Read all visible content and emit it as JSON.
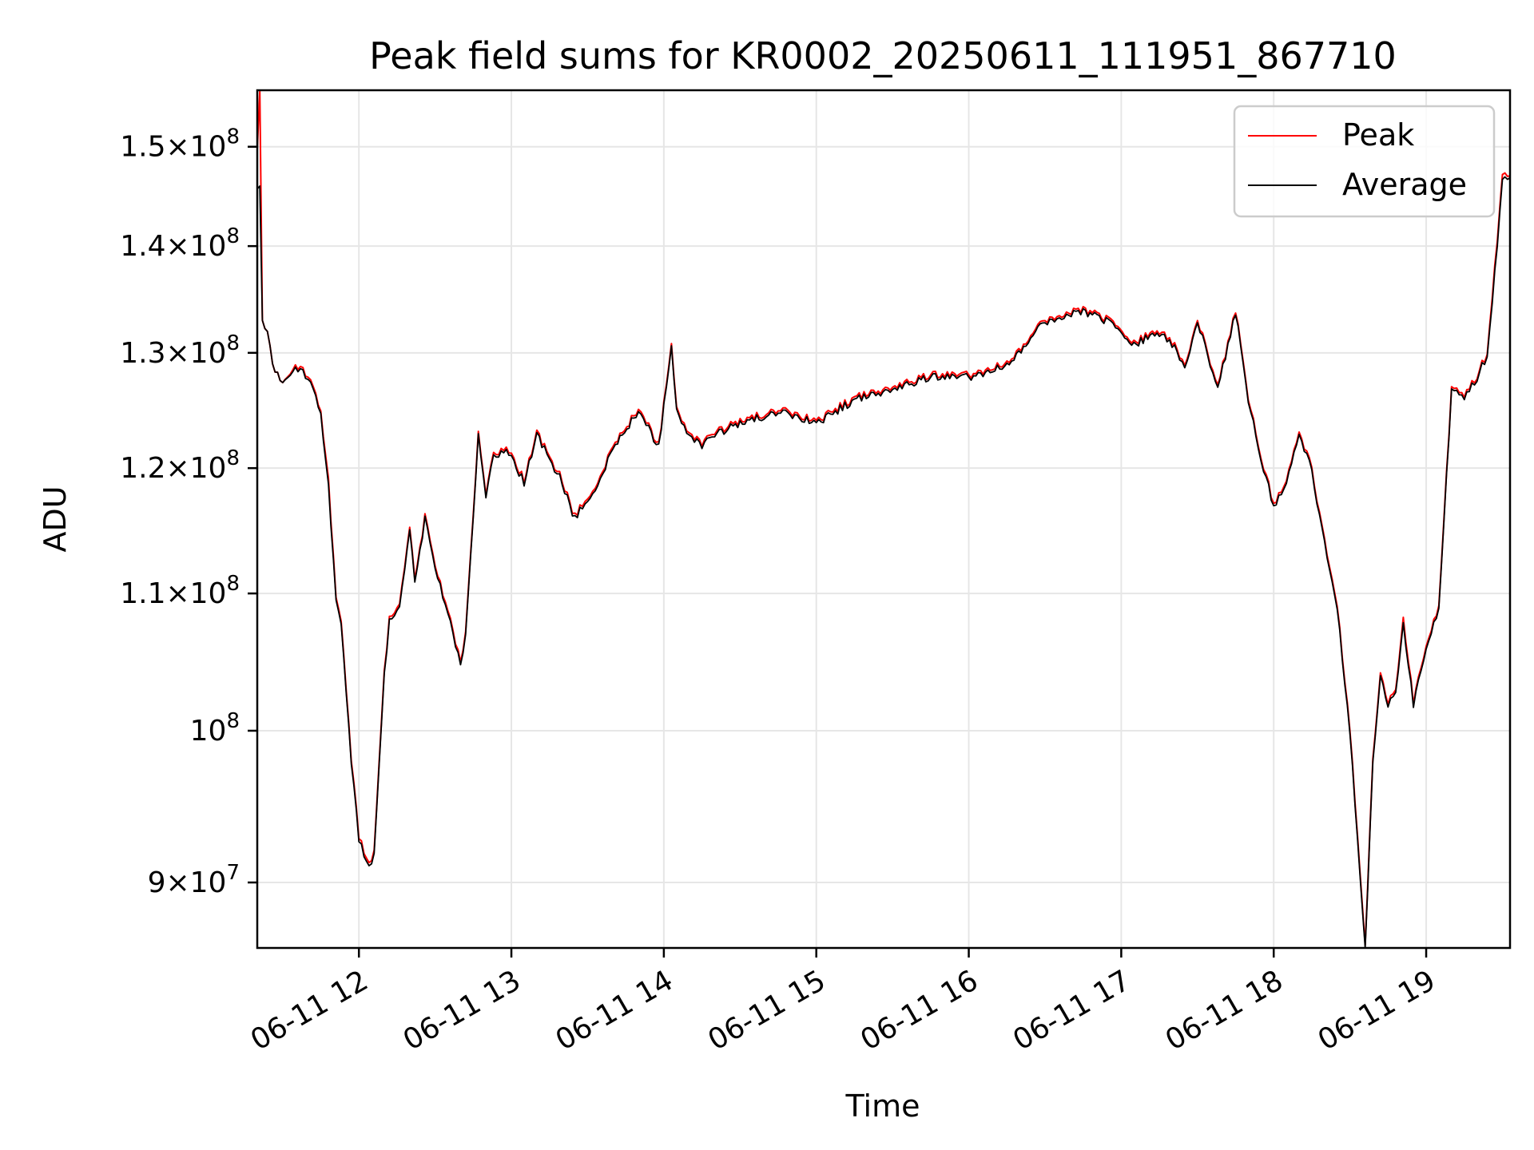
{
  "chart_data": {
    "type": "line",
    "title": "Peak field sums for KR0002_20250611_111951_867710",
    "xlabel": "Time",
    "ylabel": "ADU",
    "yscale": "log",
    "ylim": [
      86000000,
      156000000
    ],
    "xlim": [
      "2025-06-11T11:20",
      "2025-06-11T19:33"
    ],
    "grid": true,
    "legend": "top-right",
    "x_ticks": [
      {
        "value": "2025-06-11T12:00",
        "label": "06-11 12"
      },
      {
        "value": "2025-06-11T13:00",
        "label": "06-11 13"
      },
      {
        "value": "2025-06-11T14:00",
        "label": "06-11 14"
      },
      {
        "value": "2025-06-11T15:00",
        "label": "06-11 15"
      },
      {
        "value": "2025-06-11T16:00",
        "label": "06-11 16"
      },
      {
        "value": "2025-06-11T17:00",
        "label": "06-11 17"
      },
      {
        "value": "2025-06-11T18:00",
        "label": "06-11 18"
      },
      {
        "value": "2025-06-11T19:00",
        "label": "06-11 19"
      }
    ],
    "y_ticks": [
      {
        "value": 90000000,
        "mant": "9",
        "exp": "7",
        "mant_sep": true
      },
      {
        "value": 100000000,
        "mant": "10",
        "exp": "8",
        "mant_sep": false
      },
      {
        "value": 110000000,
        "mant": "1.1",
        "exp": "8",
        "mant_sep": true
      },
      {
        "value": 120000000,
        "mant": "1.2",
        "exp": "8",
        "mant_sep": true
      },
      {
        "value": 130000000,
        "mant": "1.3",
        "exp": "8",
        "mant_sep": true
      },
      {
        "value": 140000000,
        "mant": "1.4",
        "exp": "8",
        "mant_sep": true
      },
      {
        "value": 150000000,
        "mant": "1.5",
        "exp": "8",
        "mant_sep": true
      }
    ],
    "series": [
      {
        "name": "Peak",
        "color": "#ff0000",
        "x": [
          "2025-06-11T11:20",
          "2025-06-11T11:21",
          "2025-06-11T11:22",
          "2025-06-11T11:24",
          "2025-06-11T11:26",
          "2025-06-11T11:30",
          "2025-06-11T11:35",
          "2025-06-11T11:40",
          "2025-06-11T11:45",
          "2025-06-11T11:48",
          "2025-06-11T11:51",
          "2025-06-11T11:53",
          "2025-06-11T11:57",
          "2025-06-11T12:00",
          "2025-06-11T12:04",
          "2025-06-11T12:06",
          "2025-06-11T12:10",
          "2025-06-11T12:12",
          "2025-06-11T12:16",
          "2025-06-11T12:20",
          "2025-06-11T12:22",
          "2025-06-11T12:26",
          "2025-06-11T12:30",
          "2025-06-11T12:36",
          "2025-06-11T12:40",
          "2025-06-11T12:42",
          "2025-06-11T12:47",
          "2025-06-11T12:50",
          "2025-06-11T12:53",
          "2025-06-11T12:58",
          "2025-06-11T13:05",
          "2025-06-11T13:10",
          "2025-06-11T13:15",
          "2025-06-11T13:20",
          "2025-06-11T13:25",
          "2025-06-11T13:28",
          "2025-06-11T13:33",
          "2025-06-11T13:40",
          "2025-06-11T13:50",
          "2025-06-11T13:58",
          "2025-06-11T14:03",
          "2025-06-11T14:05",
          "2025-06-11T14:10",
          "2025-06-11T14:15",
          "2025-06-11T14:20",
          "2025-06-11T14:30",
          "2025-06-11T14:45",
          "2025-06-11T15:00",
          "2025-06-11T15:15",
          "2025-06-11T15:30",
          "2025-06-11T15:45",
          "2025-06-11T16:00",
          "2025-06-11T16:15",
          "2025-06-11T16:30",
          "2025-06-11T16:45",
          "2025-06-11T16:55",
          "2025-06-11T17:05",
          "2025-06-11T17:15",
          "2025-06-11T17:20",
          "2025-06-11T17:25",
          "2025-06-11T17:30",
          "2025-06-11T17:38",
          "2025-06-11T17:45",
          "2025-06-11T17:50",
          "2025-06-11T17:55",
          "2025-06-11T18:00",
          "2025-06-11T18:05",
          "2025-06-11T18:10",
          "2025-06-11T18:15",
          "2025-06-11T18:20",
          "2025-06-11T18:25",
          "2025-06-11T18:30",
          "2025-06-11T18:33",
          "2025-06-11T18:36",
          "2025-06-11T18:39",
          "2025-06-11T18:42",
          "2025-06-11T18:45",
          "2025-06-11T18:48",
          "2025-06-11T18:51",
          "2025-06-11T18:55",
          "2025-06-11T19:00",
          "2025-06-11T19:05",
          "2025-06-11T19:10",
          "2025-06-11T19:15",
          "2025-06-11T19:20",
          "2025-06-11T19:24",
          "2025-06-11T19:26",
          "2025-06-11T19:30",
          "2025-06-11T19:33"
        ],
        "y": [
          150000000,
          156000000,
          133000000,
          132000000,
          129000000,
          127000000,
          129000000,
          128000000,
          125000000,
          119000000,
          110000000,
          108000000,
          98000000,
          93000000,
          91000000,
          92000000,
          104000000,
          108000000,
          109000000,
          115000000,
          111000000,
          116000000,
          112000000,
          108000000,
          105000000,
          107000000,
          123000000,
          118000000,
          121000000,
          122000000,
          119000000,
          123000000,
          121000000,
          119000000,
          116000000,
          117000000,
          118000000,
          122000000,
          125000000,
          122000000,
          131000000,
          125000000,
          123000000,
          122000000,
          123000000,
          124000000,
          125000000,
          124000000,
          126000000,
          127000000,
          128000000,
          128000000,
          129000000,
          133000000,
          134000000,
          133000000,
          131000000,
          132000000,
          131000000,
          129000000,
          133000000,
          127000000,
          134000000,
          126000000,
          121000000,
          117000000,
          119000000,
          123000000,
          120000000,
          114000000,
          109000000,
          100000000,
          93000000,
          86000000,
          98000000,
          104000000,
          102000000,
          103000000,
          108000000,
          102000000,
          106000000,
          109000000,
          127000000,
          126000000,
          128000000,
          130000000,
          135000000,
          147000000,
          147000000
        ]
      },
      {
        "name": "Average",
        "color": "#000000",
        "x": [
          "2025-06-11T11:20",
          "2025-06-11T11:21",
          "2025-06-11T11:22",
          "2025-06-11T11:24",
          "2025-06-11T11:26",
          "2025-06-11T11:30",
          "2025-06-11T11:35",
          "2025-06-11T11:40",
          "2025-06-11T11:45",
          "2025-06-11T11:48",
          "2025-06-11T11:51",
          "2025-06-11T11:53",
          "2025-06-11T11:57",
          "2025-06-11T12:00",
          "2025-06-11T12:04",
          "2025-06-11T12:06",
          "2025-06-11T12:10",
          "2025-06-11T12:12",
          "2025-06-11T12:16",
          "2025-06-11T12:20",
          "2025-06-11T12:22",
          "2025-06-11T12:26",
          "2025-06-11T12:30",
          "2025-06-11T12:36",
          "2025-06-11T12:40",
          "2025-06-11T12:42",
          "2025-06-11T12:47",
          "2025-06-11T12:50",
          "2025-06-11T12:53",
          "2025-06-11T12:58",
          "2025-06-11T13:05",
          "2025-06-11T13:10",
          "2025-06-11T13:15",
          "2025-06-11T13:20",
          "2025-06-11T13:25",
          "2025-06-11T13:28",
          "2025-06-11T13:33",
          "2025-06-11T13:40",
          "2025-06-11T13:50",
          "2025-06-11T13:58",
          "2025-06-11T14:03",
          "2025-06-11T14:05",
          "2025-06-11T14:10",
          "2025-06-11T14:15",
          "2025-06-11T14:20",
          "2025-06-11T14:30",
          "2025-06-11T14:45",
          "2025-06-11T15:00",
          "2025-06-11T15:15",
          "2025-06-11T15:30",
          "2025-06-11T15:45",
          "2025-06-11T16:00",
          "2025-06-11T16:15",
          "2025-06-11T16:30",
          "2025-06-11T16:45",
          "2025-06-11T16:55",
          "2025-06-11T17:05",
          "2025-06-11T17:15",
          "2025-06-11T17:20",
          "2025-06-11T17:25",
          "2025-06-11T17:30",
          "2025-06-11T17:38",
          "2025-06-11T17:45",
          "2025-06-11T17:50",
          "2025-06-11T17:55",
          "2025-06-11T18:00",
          "2025-06-11T18:05",
          "2025-06-11T18:10",
          "2025-06-11T18:15",
          "2025-06-11T18:20",
          "2025-06-11T18:25",
          "2025-06-11T18:30",
          "2025-06-11T18:33",
          "2025-06-11T18:36",
          "2025-06-11T18:39",
          "2025-06-11T18:42",
          "2025-06-11T18:45",
          "2025-06-11T18:48",
          "2025-06-11T18:51",
          "2025-06-11T18:55",
          "2025-06-11T19:00",
          "2025-06-11T19:05",
          "2025-06-11T19:10",
          "2025-06-11T19:15",
          "2025-06-11T19:20",
          "2025-06-11T19:24",
          "2025-06-11T19:26",
          "2025-06-11T19:30",
          "2025-06-11T19:33"
        ],
        "y": [
          146000000,
          146000000,
          133000000,
          132000000,
          129000000,
          127000000,
          128800000,
          127800000,
          124800000,
          118500000,
          109800000,
          107800000,
          97800000,
          92800000,
          90800000,
          91800000,
          103800000,
          107800000,
          108800000,
          114800000,
          110800000,
          115800000,
          111800000,
          107800000,
          104800000,
          106800000,
          122800000,
          117800000,
          120800000,
          121800000,
          118800000,
          122800000,
          120800000,
          118800000,
          115800000,
          116800000,
          117800000,
          121800000,
          124800000,
          121800000,
          130800000,
          124800000,
          122800000,
          121800000,
          122800000,
          123800000,
          124800000,
          123800000,
          125800000,
          126800000,
          127800000,
          127800000,
          128800000,
          132800000,
          133800000,
          132800000,
          130800000,
          131800000,
          130800000,
          128800000,
          132800000,
          126800000,
          133800000,
          125800000,
          120800000,
          116800000,
          118800000,
          122800000,
          119800000,
          113800000,
          108800000,
          99800000,
          92800000,
          85800000,
          97800000,
          103800000,
          101800000,
          102800000,
          107600000,
          101800000,
          105800000,
          108800000,
          126800000,
          125800000,
          127800000,
          129800000,
          134500000,
          146500000,
          146800000
        ]
      }
    ]
  }
}
